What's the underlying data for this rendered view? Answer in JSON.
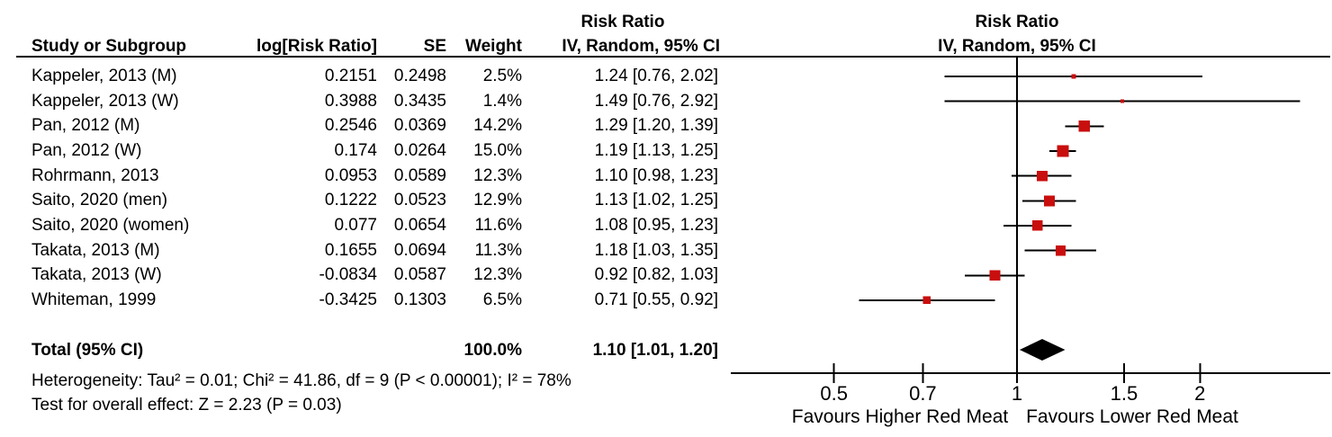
{
  "table": {
    "header_top": "Risk Ratio",
    "columns": [
      "Study or Subgroup",
      "log[Risk Ratio]",
      "SE",
      "Weight",
      "IV, Random, 95% CI"
    ],
    "rows": [
      {
        "study": "Kappeler, 2013 (M)",
        "log_rr": "0.2151",
        "se": "0.2498",
        "weight": "2.5%",
        "ci": "1.24 [0.76, 2.02]"
      },
      {
        "study": "Kappeler, 2013 (W)",
        "log_rr": "0.3988",
        "se": "0.3435",
        "weight": "1.4%",
        "ci": "1.49 [0.76, 2.92]"
      },
      {
        "study": "Pan, 2012 (M)",
        "log_rr": "0.2546",
        "se": "0.0369",
        "weight": "14.2%",
        "ci": "1.29 [1.20, 1.39]"
      },
      {
        "study": "Pan, 2012 (W)",
        "log_rr": "0.174",
        "se": "0.0264",
        "weight": "15.0%",
        "ci": "1.19 [1.13, 1.25]"
      },
      {
        "study": "Rohrmann, 2013",
        "log_rr": "0.0953",
        "se": "0.0589",
        "weight": "12.3%",
        "ci": "1.10 [0.98, 1.23]"
      },
      {
        "study": "Saito, 2020 (men)",
        "log_rr": "0.1222",
        "se": "0.0523",
        "weight": "12.9%",
        "ci": "1.13 [1.02, 1.25]"
      },
      {
        "study": "Saito, 2020 (women)",
        "log_rr": "0.077",
        "se": "0.0654",
        "weight": "11.6%",
        "ci": "1.08 [0.95, 1.23]"
      },
      {
        "study": "Takata, 2013 (M)",
        "log_rr": "0.1655",
        "se": "0.0694",
        "weight": "11.3%",
        "ci": "1.18 [1.03, 1.35]"
      },
      {
        "study": "Takata, 2013 (W)",
        "log_rr": "-0.0834",
        "se": "0.0587",
        "weight": "12.3%",
        "ci": "0.92 [0.82, 1.03]"
      },
      {
        "study": "Whiteman, 1999",
        "log_rr": "-0.3425",
        "se": "0.1303",
        "weight": "6.5%",
        "ci": "0.71 [0.55, 0.92]"
      }
    ],
    "total": {
      "label": "Total (95% CI)",
      "weight": "100.0%",
      "ci": "1.10 [1.01, 1.20]"
    },
    "heterogeneity": "Heterogeneity: Tau² = 0.01; Chi² = 41.86, df = 9 (P < 0.00001); I² = 78%",
    "overall_effect": "Test for overall effect: Z = 2.23 (P = 0.03)"
  },
  "plot": {
    "header_line1": "Risk Ratio",
    "header_line2": "IV, Random, 95% CI",
    "tick_labels": [
      "0.5",
      "0.7",
      "1",
      "1.5",
      "2"
    ],
    "favours_left": "Favours Higher Red Meat",
    "favours_right": "Favours Lower Red Meat",
    "marker_color": "#C90E0E",
    "line_color": "#000000"
  },
  "chart_data": {
    "type": "forest",
    "x_scale": "log",
    "title": "Risk Ratio IV, Random, 95% CI",
    "studies": [
      {
        "name": "Kappeler, 2013 (M)",
        "log_rr": 0.2151,
        "se": 0.2498,
        "weight_pct": 2.5,
        "rr": 1.24,
        "ci_low": 0.76,
        "ci_high": 2.02
      },
      {
        "name": "Kappeler, 2013 (W)",
        "log_rr": 0.3988,
        "se": 0.3435,
        "weight_pct": 1.4,
        "rr": 1.49,
        "ci_low": 0.76,
        "ci_high": 2.92
      },
      {
        "name": "Pan, 2012 (M)",
        "log_rr": 0.2546,
        "se": 0.0369,
        "weight_pct": 14.2,
        "rr": 1.29,
        "ci_low": 1.2,
        "ci_high": 1.39
      },
      {
        "name": "Pan, 2012 (W)",
        "log_rr": 0.174,
        "se": 0.0264,
        "weight_pct": 15.0,
        "rr": 1.19,
        "ci_low": 1.13,
        "ci_high": 1.25
      },
      {
        "name": "Rohrmann, 2013",
        "log_rr": 0.0953,
        "se": 0.0589,
        "weight_pct": 12.3,
        "rr": 1.1,
        "ci_low": 0.98,
        "ci_high": 1.23
      },
      {
        "name": "Saito, 2020 (men)",
        "log_rr": 0.1222,
        "se": 0.0523,
        "weight_pct": 12.9,
        "rr": 1.13,
        "ci_low": 1.02,
        "ci_high": 1.25
      },
      {
        "name": "Saito, 2020 (women)",
        "log_rr": 0.077,
        "se": 0.0654,
        "weight_pct": 11.6,
        "rr": 1.08,
        "ci_low": 0.95,
        "ci_high": 1.23
      },
      {
        "name": "Takata, 2013 (M)",
        "log_rr": 0.1655,
        "se": 0.0694,
        "weight_pct": 11.3,
        "rr": 1.18,
        "ci_low": 1.03,
        "ci_high": 1.35
      },
      {
        "name": "Takata, 2013 (W)",
        "log_rr": -0.0834,
        "se": 0.0587,
        "weight_pct": 12.3,
        "rr": 0.92,
        "ci_low": 0.82,
        "ci_high": 1.03
      },
      {
        "name": "Whiteman, 1999",
        "log_rr": -0.3425,
        "se": 0.1303,
        "weight_pct": 6.5,
        "rr": 0.71,
        "ci_low": 0.55,
        "ci_high": 0.92
      }
    ],
    "total": {
      "name": "Total (95% CI)",
      "weight_pct": 100.0,
      "rr": 1.1,
      "ci_low": 1.01,
      "ci_high": 1.2
    },
    "heterogeneity": {
      "tau2": 0.01,
      "chi2": 41.86,
      "df": 9,
      "p": "< 0.00001",
      "i2_pct": 78
    },
    "overall_effect": {
      "z": 2.23,
      "p": 0.03
    },
    "x_ticks": [
      0.5,
      0.7,
      1,
      1.5,
      2
    ],
    "xlim": [
      0.34,
      3.28
    ],
    "null_value": 1,
    "favours_left": "Favours Higher Red Meat",
    "favours_right": "Favours Lower Red Meat"
  }
}
